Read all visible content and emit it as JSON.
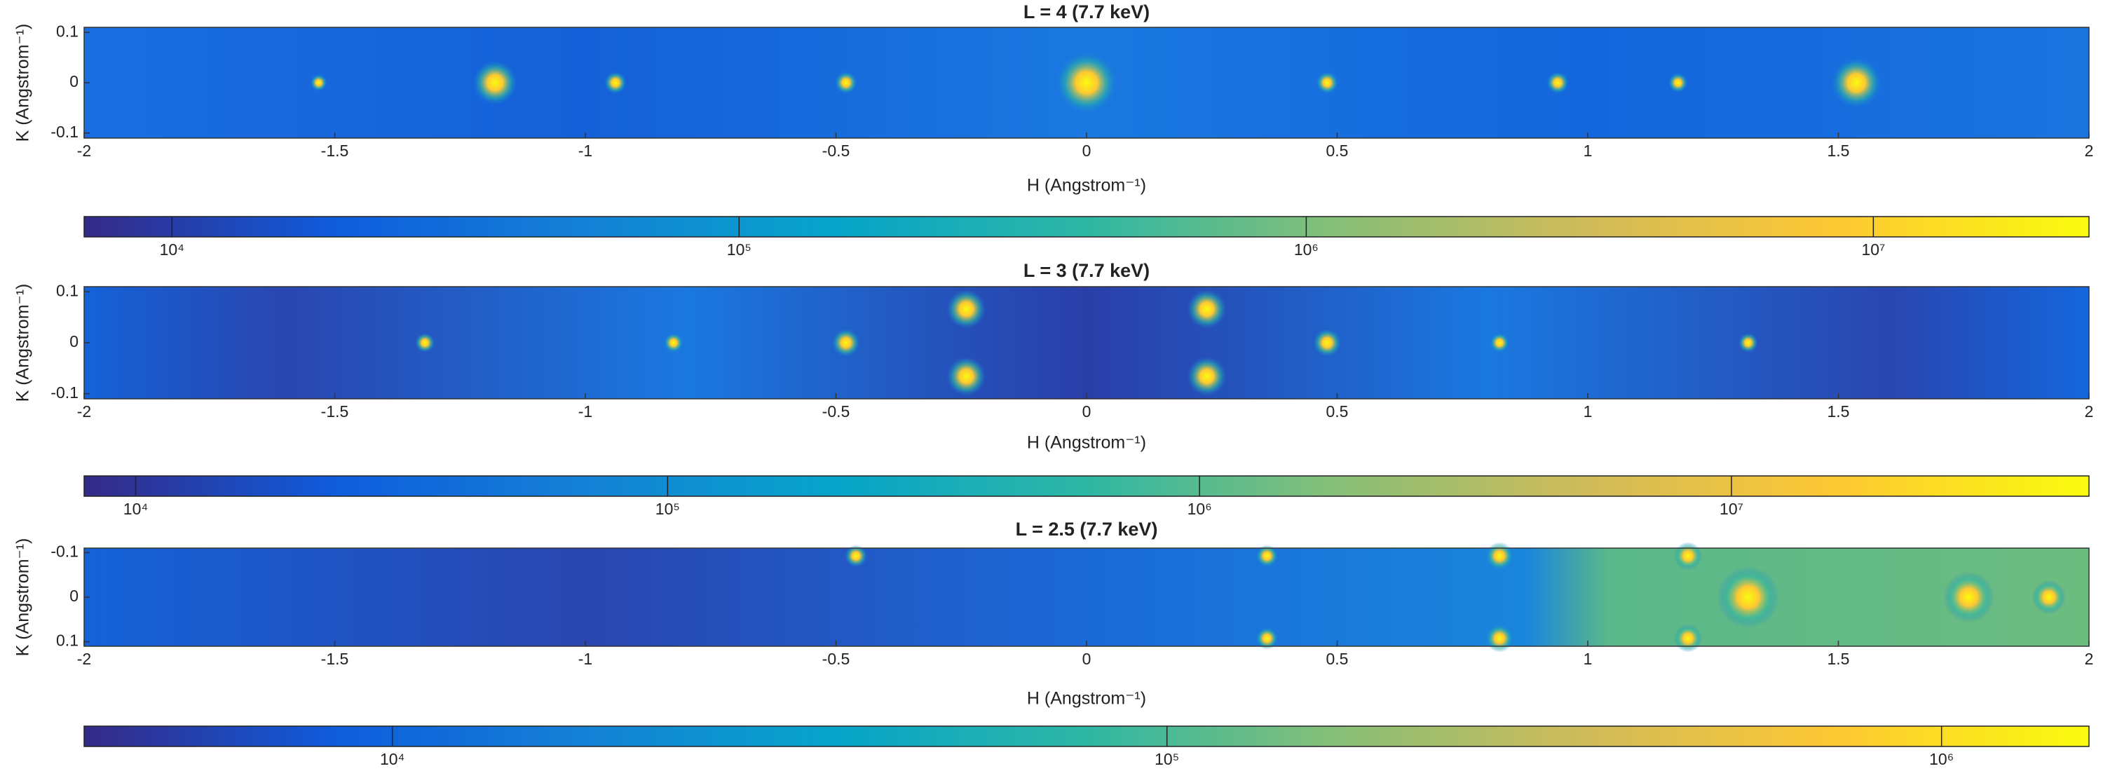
{
  "chart_data": [
    {
      "type": "heatmap",
      "title": "L = 4 (7.7 keV)",
      "xlabel": "H (Angstrom⁻¹)",
      "ylabel": "K (Angstrom⁻¹)",
      "xlim": [
        -2,
        2
      ],
      "xticks": [
        -2,
        -1.5,
        -1,
        -0.5,
        0,
        0.5,
        1,
        1.5,
        2
      ],
      "ylim": [
        -0.11,
        0.11
      ],
      "yticks": [
        0.1,
        0,
        -0.1
      ],
      "colorbar": {
        "scale": "log",
        "lim": [
          7000,
          24000000
        ],
        "ticks": [
          {
            "value": 10000,
            "label": "10⁴"
          },
          {
            "value": 100000,
            "label": "10⁵"
          },
          {
            "value": 1000000,
            "label": "10⁶"
          },
          {
            "value": 10000000,
            "label": "10⁷"
          }
        ]
      },
      "colormap": [
        "#352a87",
        "#0f5cdd",
        "#1481d6",
        "#06a4ca",
        "#2eb7a4",
        "#87bf77",
        "#d1bb59",
        "#fec832",
        "#f9fb0e"
      ]
    },
    {
      "type": "heatmap",
      "title": "L = 3 (7.7 keV)",
      "xlabel": "H (Angstrom⁻¹)",
      "ylabel": "K (Angstrom⁻¹)",
      "xlim": [
        -2,
        2
      ],
      "xticks": [
        -2,
        -1.5,
        -1,
        -0.5,
        0,
        0.5,
        1,
        1.5,
        2
      ],
      "ylim": [
        -0.11,
        0.11
      ],
      "yticks": [
        0.1,
        0,
        -0.1
      ],
      "colorbar": {
        "scale": "log",
        "lim": [
          8000,
          47000000
        ],
        "ticks": [
          {
            "value": 10000,
            "label": "10⁴"
          },
          {
            "value": 100000,
            "label": "10⁵"
          },
          {
            "value": 1000000,
            "label": "10⁶"
          },
          {
            "value": 10000000,
            "label": "10⁷"
          }
        ]
      },
      "colormap": [
        "#352a87",
        "#0f5cdd",
        "#1481d6",
        "#06a4ca",
        "#2eb7a4",
        "#87bf77",
        "#d1bb59",
        "#fec832",
        "#f9fb0e"
      ]
    },
    {
      "type": "heatmap",
      "title": "L = 2.5 (7.7 keV)",
      "xlabel": "H (Angstrom⁻¹)",
      "ylabel": "K (Angstrom⁻¹)",
      "xlim": [
        -2,
        2
      ],
      "xticks": [
        -2,
        -1.5,
        -1,
        -0.5,
        0,
        0.5,
        1,
        1.5,
        2
      ],
      "ylim": [
        0.11,
        -0.11
      ],
      "yticks": [
        -0.1,
        0,
        0.1
      ],
      "colorbar": {
        "scale": "log",
        "lim": [
          4000,
          1550000
        ],
        "ticks": [
          {
            "value": 10000,
            "label": "10⁴"
          },
          {
            "value": 100000,
            "label": "10⁵"
          },
          {
            "value": 1000000,
            "label": "10⁶"
          }
        ]
      },
      "colormap": [
        "#352a87",
        "#0f5cdd",
        "#1481d6",
        "#06a4ca",
        "#2eb7a4",
        "#87bf77",
        "#d1bb59",
        "#fec832",
        "#f9fb0e"
      ]
    }
  ]
}
